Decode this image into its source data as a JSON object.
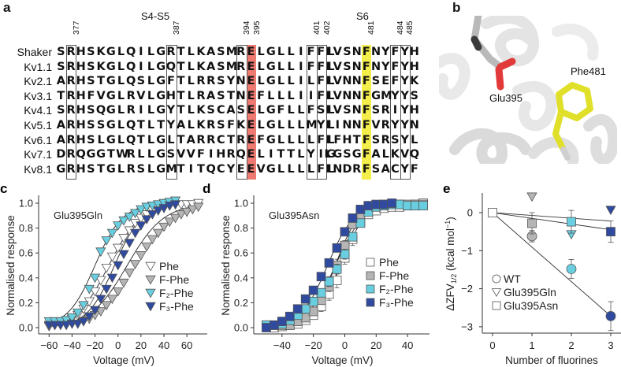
{
  "panel_a": {
    "letter": "a",
    "s4s5_title": "S4-S5",
    "s6_title": "S6",
    "s4s5_positions": [
      "377",
      "387",
      "394",
      "395",
      "401",
      "402"
    ],
    "s6_positions": [
      "481",
      "484",
      "485"
    ],
    "highlight_colors": {
      "glu395": "#ee7a72",
      "phe481": "#f4ee4a"
    },
    "rows": [
      {
        "name": "Shaker",
        "s4s5": "SRHSKGLQILGRTLKASMRELGLLIFFL",
        "s6": "IVSNFNYFYH"
      },
      {
        "name": "Kv1.1",
        "s4s5": "SRHSKGLQILGQTLKASMRELGLLIFFL",
        "s6": "IVSNFNYFYH"
      },
      {
        "name": "Kv2.1",
        "s4s5": "ARHSTGLQSLGFTLRRSYNELGLLILFL",
        "s6": "IVNNFSEFYK"
      },
      {
        "name": "Kv3.1",
        "s4s5": "TRHFVGLRVLGHTLRASTNEFLLLIIFL",
        "s6": "IVNNFGMYYS"
      },
      {
        "name": "Kv4.1",
        "s4s5": "SRHSQGLRILGYTLKSCASELGFLLFSL",
        "s6": "IVSNFSRIYH"
      },
      {
        "name": "Kv5.1",
        "s4s5": "ARHSSGLQTLTYALKRSFKELGLLLMYL",
        "s6": "IINNFVRYYN"
      },
      {
        "name": "Kv6.1",
        "s4s5": "ARHSLGLQTLGLTARRCTREFGLLLLFL",
        "s6": "IFHTFSRSYL"
      },
      {
        "name": "Kv7.1",
        "s4s5": "DRQGGTWRLLGSVVFIHRQELITTLYIG",
        "s6": "LGSGFALKVQ"
      },
      {
        "name": "Kv8.1",
        "s4s5": "GRHSTGLRSLGMTITQCYEEVGLLLLFL",
        "s6": "INDRFSACYF"
      }
    ]
  },
  "panel_b": {
    "letter": "b",
    "labels": {
      "glu": "Glu395",
      "phe": "Phe481"
    },
    "colors": {
      "helix": "#e6e6e6",
      "glu_stick": "#b9b9b9",
      "oxygen": "#e23a3a",
      "phe_stick": "#e0e02a",
      "carbon_dark": "#3b3b3b"
    }
  },
  "chart_data": [
    {
      "panel": "c",
      "type": "scatter",
      "title": "Glu395Gln",
      "xlabel": "Voltage (mV)",
      "ylabel": "Normalised response",
      "xlim": [
        -65,
        75
      ],
      "ylim": [
        0.0,
        1.0
      ],
      "xticks": [
        "-60",
        "-40",
        "-20",
        "0",
        "20",
        "40",
        "60"
      ],
      "yticks": [
        "0.0",
        "0.2",
        "0.4",
        "0.6",
        "0.8",
        "1.0"
      ],
      "marker": "triangle-down",
      "legend_position": "center-right",
      "legend": [
        "Phe",
        "F-Phe",
        "F₂-Phe",
        "F₃-Phe"
      ],
      "series": [
        {
          "name": "Phe",
          "color": "#ffffff",
          "fit": {
            "v_half": -8,
            "k": 14
          },
          "x": [
            -60,
            -55,
            -50,
            -45,
            -40,
            -35,
            -30,
            -25,
            -20,
            -15,
            -10,
            -5,
            0,
            5,
            10,
            15,
            20,
            25,
            30,
            35,
            40,
            45,
            50,
            55,
            60,
            65,
            70
          ],
          "y": [
            0.01,
            0.02,
            0.03,
            0.05,
            0.07,
            0.1,
            0.15,
            0.21,
            0.29,
            0.38,
            0.48,
            0.57,
            0.64,
            0.72,
            0.78,
            0.84,
            0.88,
            0.91,
            0.94,
            0.96,
            0.97,
            0.98,
            0.99,
            0.99,
            0.99,
            0.99,
            1.0
          ]
        },
        {
          "name": "F-Phe",
          "color": "#b5b5b5",
          "fit": {
            "v_half": 8,
            "k": 16
          },
          "x": [
            -30,
            -25,
            -20,
            -15,
            -10,
            -5,
            0,
            5,
            10,
            15,
            20,
            25,
            30,
            35,
            40,
            45,
            50,
            55,
            60,
            65,
            70
          ],
          "y": [
            0.05,
            0.07,
            0.1,
            0.13,
            0.18,
            0.23,
            0.29,
            0.36,
            0.44,
            0.51,
            0.58,
            0.65,
            0.71,
            0.76,
            0.81,
            0.85,
            0.88,
            0.91,
            0.93,
            0.95,
            0.97
          ]
        },
        {
          "name": "F₂-Phe",
          "color": "#69cfe0",
          "fit": {
            "v_half": -20,
            "k": 12
          },
          "x": [
            -60,
            -55,
            -50,
            -45,
            -40,
            -35,
            -30,
            -25,
            -20,
            -15,
            -10,
            -5,
            0,
            5,
            10,
            15,
            20,
            25,
            30,
            35,
            40,
            45,
            50
          ],
          "y": [
            0.05,
            0.05,
            0.05,
            0.06,
            0.08,
            0.12,
            0.18,
            0.31,
            0.4,
            0.61,
            0.7,
            0.76,
            0.82,
            0.86,
            0.89,
            0.92,
            0.95,
            0.97,
            0.98,
            0.99,
            1.0,
            1.01,
            1.02
          ]
        },
        {
          "name": "F₃-Phe",
          "color": "#2f4a9e",
          "fit": {
            "v_half": -3,
            "k": 12
          },
          "x": [
            -60,
            -55,
            -50,
            -45,
            -40,
            -35,
            -30,
            -25,
            -20,
            -15,
            -10,
            -5,
            0,
            5,
            10,
            15,
            20,
            25,
            30,
            35,
            40,
            45,
            50
          ],
          "y": [
            0.02,
            0.02,
            0.02,
            0.02,
            0.03,
            0.03,
            0.05,
            0.09,
            0.14,
            0.23,
            0.31,
            0.4,
            0.5,
            0.59,
            0.68,
            0.76,
            0.82,
            0.87,
            0.91,
            0.94,
            0.96,
            0.98,
            0.99
          ]
        }
      ]
    },
    {
      "panel": "d",
      "type": "scatter",
      "title": "Glu395Asn",
      "xlabel": "Voltage (mV)",
      "ylabel": "Normalised response",
      "xlim": [
        -55,
        52
      ],
      "ylim": [
        0.0,
        1.0
      ],
      "xticks": [
        "-40",
        "-20",
        "0",
        "20",
        "40"
      ],
      "yticks": [
        "0.0",
        "0.2",
        "0.4",
        "0.6",
        "0.8",
        "1.0"
      ],
      "marker": "square",
      "legend_position": "center-right",
      "legend": [
        "Phe",
        "F-Phe",
        "F₂-Phe",
        "F₃-Phe"
      ],
      "series": [
        {
          "name": "Phe",
          "color": "#ffffff",
          "fit": {
            "v_half": -3,
            "k": 8
          },
          "x": [
            -45,
            -40,
            -35,
            -30,
            -25,
            -20,
            -15,
            -10,
            -5,
            0,
            5,
            10,
            15,
            20,
            25,
            30,
            35,
            40,
            45,
            50
          ],
          "y": [
            0.0,
            0.01,
            0.02,
            0.03,
            0.06,
            0.1,
            0.17,
            0.27,
            0.38,
            0.56,
            0.71,
            0.85,
            0.91,
            0.94,
            0.96,
            0.97,
            0.97,
            0.98,
            0.99,
            1.0
          ],
          "err": [
            0,
            0,
            0,
            0,
            0,
            0.02,
            0.04,
            0.05,
            0.06,
            0.05,
            0.05,
            0.04,
            0.03,
            0.02,
            0,
            0,
            0,
            0,
            0,
            0
          ]
        },
        {
          "name": "F-Phe",
          "color": "#b5b5b5",
          "fit": {
            "v_half": -6,
            "k": 7.5
          },
          "x": [
            -50,
            -45,
            -40,
            -35,
            -30,
            -25,
            -20,
            -15,
            -10,
            -5,
            0,
            5,
            10,
            15,
            20,
            25,
            30,
            35,
            40,
            45,
            50
          ],
          "y": [
            0.02,
            0.02,
            0.02,
            0.02,
            0.05,
            0.08,
            0.13,
            0.22,
            0.33,
            0.5,
            0.66,
            0.83,
            0.9,
            0.96,
            0.98,
            0.99,
            0.99,
            0.99,
            0.99,
            0.99,
            0.99
          ],
          "err": [
            0,
            0,
            0,
            0,
            0,
            0,
            0.02,
            0.03,
            0.04,
            0.05,
            0.04,
            0.03,
            0.02,
            0,
            0,
            0,
            0,
            0,
            0,
            0,
            0
          ]
        },
        {
          "name": "F₂-Phe",
          "color": "#69cfe0",
          "fit": {
            "v_half": -6,
            "k": 9
          },
          "x": [
            -50,
            -45,
            -40,
            -35,
            -30,
            -25,
            -20,
            -15,
            -10,
            -5,
            0,
            5,
            10,
            15,
            20,
            25,
            30,
            35,
            40,
            45,
            50
          ],
          "y": [
            0.02,
            0.02,
            0.03,
            0.06,
            0.1,
            0.15,
            0.21,
            0.28,
            0.37,
            0.47,
            0.59,
            0.73,
            0.84,
            0.93,
            0.97,
            0.98,
            0.99,
            0.99,
            0.98,
            0.98,
            0.98
          ],
          "err": [
            0,
            0,
            0,
            0,
            0,
            0,
            0.02,
            0.03,
            0.04,
            0.04,
            0.04,
            0.03,
            0.03,
            0,
            0,
            0,
            0,
            0,
            0,
            0,
            0
          ]
        },
        {
          "name": "F₃-Phe",
          "color": "#2f4a9e",
          "fit": {
            "v_half": -11,
            "k": 8.5
          },
          "x": [
            -50,
            -45,
            -40,
            -35,
            -30,
            -25,
            -20,
            -15,
            -10,
            -5,
            0,
            5,
            10,
            15,
            20,
            25,
            30
          ],
          "y": [
            0.0,
            0.02,
            0.05,
            0.09,
            0.15,
            0.23,
            0.3,
            0.41,
            0.52,
            0.64,
            0.77,
            0.88,
            0.95,
            0.98,
            0.99,
            0.99,
            1.0
          ],
          "err": [
            0,
            0,
            0,
            0,
            0,
            0,
            0,
            0,
            0,
            0,
            0,
            0,
            0,
            0,
            0,
            0,
            0
          ]
        }
      ]
    },
    {
      "panel": "e",
      "type": "scatter",
      "title": "",
      "xlabel": "Number of fluorines",
      "ylabel": "ΔZFV1/2 (kcal mol⁻¹)",
      "xlim": [
        -0.2,
        3.2
      ],
      "ylim": [
        -3.2,
        0.5
      ],
      "xticks": [
        "0",
        "1",
        "2",
        "3"
      ],
      "yticks": [
        "-3",
        "-2",
        "-1",
        "0"
      ],
      "legend_position": "bottom-left",
      "legend": [
        "WT",
        "Glu395Gln",
        "Glu395Asn"
      ],
      "point_colors": [
        "#ffffff",
        "#b5b5b5",
        "#69cfe0",
        "#2f4a9e"
      ],
      "series": [
        {
          "name": "WT",
          "marker": "circle",
          "x": [
            1,
            2,
            3
          ],
          "y": [
            -0.62,
            -1.48,
            -2.72
          ],
          "err": [
            0.15,
            0.25,
            0.38
          ]
        },
        {
          "name": "Glu395Gln",
          "marker": "triangle-down",
          "x": [
            1,
            2,
            3
          ],
          "y": [
            0.42,
            -0.57,
            0.07
          ],
          "err": [
            0,
            0,
            0
          ]
        },
        {
          "name": "Glu395Asn",
          "marker": "square",
          "x": [
            1,
            2,
            3
          ],
          "y": [
            -0.28,
            -0.24,
            -0.5
          ],
          "err": [
            0.28,
            0.3,
            0.28
          ]
        },
        {
          "name": "Origin",
          "marker": "square",
          "x": [
            0
          ],
          "y": [
            0
          ],
          "err": [
            0
          ]
        }
      ],
      "fit_lines": [
        {
          "name": "WT fit",
          "x": [
            0,
            3
          ],
          "y": [
            0,
            -2.72
          ]
        },
        {
          "name": "Glu395Gln fit",
          "x": [
            0,
            3
          ],
          "y": [
            0,
            -0.22
          ]
        },
        {
          "name": "Glu395Asn fit",
          "x": [
            0,
            3
          ],
          "y": [
            0,
            -0.45
          ]
        }
      ]
    }
  ]
}
